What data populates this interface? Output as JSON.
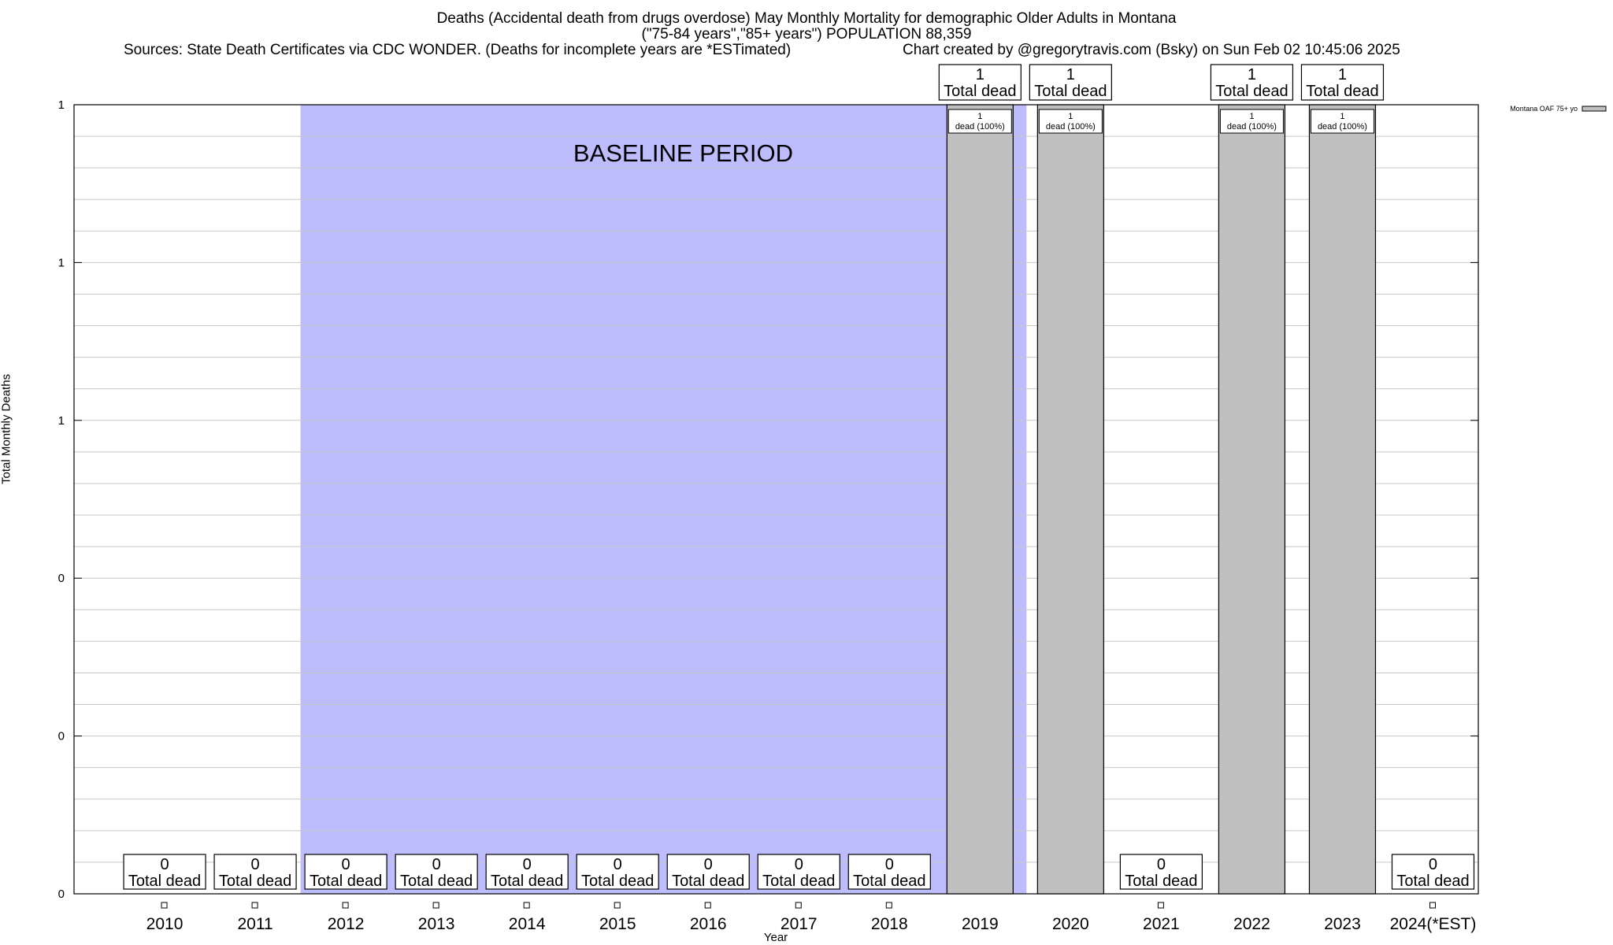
{
  "header": {
    "title_line1": "Deaths (Accidental death from drugs overdose) May Monthly Mortality for demographic Older Adults in Montana",
    "title_line2": "(\"75-84 years\",\"85+ years\") POPULATION 88,359",
    "sources": "Sources: State Death Certificates via CDC WONDER. (Deaths for incomplete years are *ESTimated)",
    "credit": "Chart created by @gregorytravis.com (Bsky) on Sun Feb 02 10:45:06 2025"
  },
  "chart_data": {
    "type": "bar",
    "title": "Deaths (Accidental death from drugs overdose) May Monthly Mortality for demographic Older Adults in Montana",
    "xlabel": "Year",
    "ylabel": "Total Monthly Deaths",
    "categories": [
      "2010",
      "2011",
      "2012",
      "2013",
      "2014",
      "2015",
      "2016",
      "2017",
      "2018",
      "2019",
      "2020",
      "2021",
      "2022",
      "2023",
      "2024(*EST)"
    ],
    "series": [
      {
        "name": "Montana OAF 75+ yo",
        "values": [
          0,
          0,
          0,
          0,
          0,
          0,
          0,
          0,
          0,
          1,
          1,
          0,
          1,
          1,
          0
        ],
        "color": "#c0c0c0"
      }
    ],
    "total_labels": [
      "0",
      "0",
      "0",
      "0",
      "0",
      "0",
      "0",
      "0",
      "0",
      "1",
      "1",
      "0",
      "1",
      "1",
      "0"
    ],
    "total_suffix": "Total dead",
    "inner_labels": {
      "2019": [
        "1",
        "dead (100%)"
      ],
      "2020": [
        "1",
        "dead (100%)"
      ],
      "2022": [
        "1",
        "dead (100%)"
      ],
      "2023": [
        "1",
        "dead (100%)"
      ]
    },
    "ylim": [
      0,
      1
    ],
    "y_tick_values": [
      0,
      0.2,
      0.4,
      0.6,
      0.8,
      1.0
    ],
    "y_tick_labels": [
      "0",
      "0",
      "0",
      "1",
      "1",
      "1"
    ],
    "grid": true,
    "legend_position": "top-right",
    "baseline_period": {
      "label": "BASELINE PERIOD",
      "from": "2012",
      "to": "2020",
      "color": "#bdbdfd"
    }
  }
}
